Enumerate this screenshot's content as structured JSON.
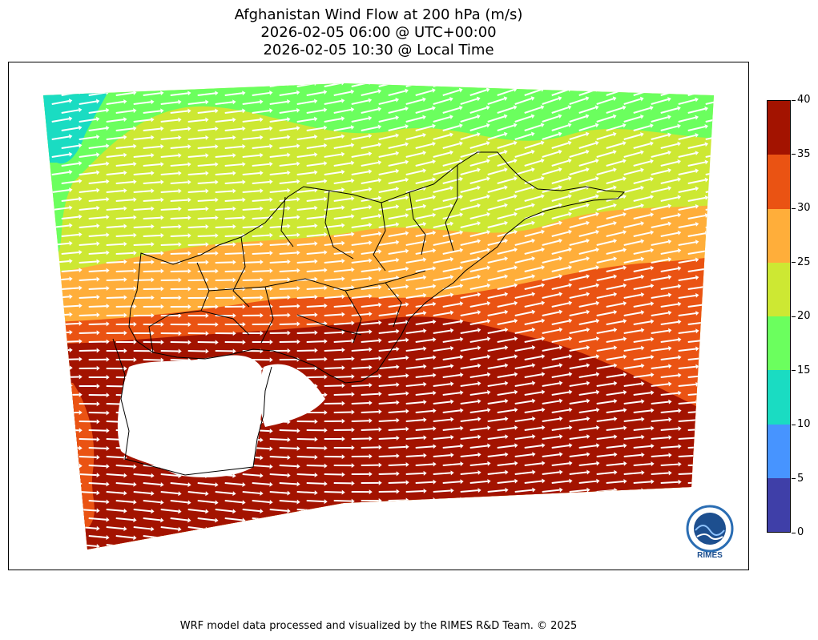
{
  "title_lines": [
    "Afghanistan Wind Flow at 200 hPa (m/s)",
    "2026-02-05 06:00 @ UTC+00:00",
    "2026-02-05 10:30 @ Local Time"
  ],
  "colorbar": {
    "bounds": [
      0,
      5,
      10,
      15,
      20,
      25,
      30,
      35,
      40
    ],
    "tick_labels": [
      "0",
      "5",
      "10",
      "15",
      "20",
      "25",
      "30",
      "35",
      "40"
    ],
    "colors": [
      "#3f3fa8",
      "#4794ff",
      "#1adcc2",
      "#6bff5e",
      "#cde833",
      "#ffae3a",
      "#ea5313",
      "#a31300"
    ]
  },
  "logo_text": "RIMES",
  "footer": "WRF model data processed and visualized by the RIMES R&D Team. © 2025"
}
